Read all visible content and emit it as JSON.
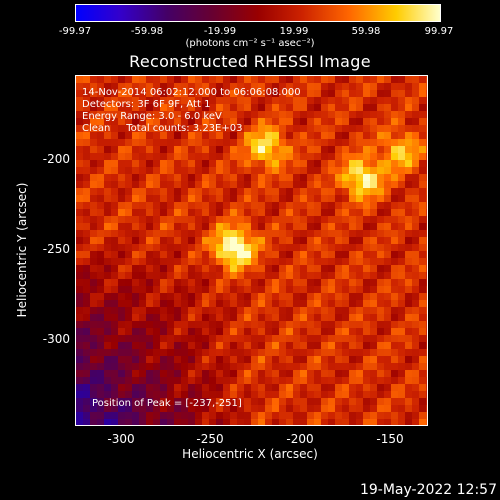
{
  "colorbar": {
    "ticks": [
      "-99.97",
      "-59.98",
      "-19.99",
      "19.99",
      "59.98",
      "99.97"
    ],
    "units": "(photons cm⁻² s⁻¹ asec⁻²)"
  },
  "plot": {
    "title": "Reconstructed RHESSI Image",
    "info": {
      "time": "14-Nov-2014 06:02:12.000 to 06:06:08.000",
      "detectors": "Detectors: 3F 6F 9F, Att 1",
      "energy": "Energy Range: 3.0 - 6.0 keV",
      "clean": "Clean     Total counts: 3.23E+03"
    },
    "peak": "Position of Peak = [-237,-251]",
    "xlabel": "Heliocentric X (arcsec)",
    "ylabel": "Heliocentric Y (arcsec)",
    "xticks": [
      "-300",
      "-250",
      "-200",
      "-150"
    ],
    "yticks": [
      "-200",
      "-250",
      "-300"
    ]
  },
  "footer": {
    "timestamp": "19-May-2022 12:57"
  },
  "chart_data": {
    "type": "heatmap",
    "title": "Reconstructed RHESSI Image",
    "xlabel": "Heliocentric X (arcsec)",
    "ylabel": "Heliocentric Y (arcsec)",
    "xlim": [
      -325,
      -130
    ],
    "ylim": [
      -350,
      -155
    ],
    "colorbar_range": [
      -99.97,
      99.97
    ],
    "sources": [
      {
        "x": -237,
        "y": -251,
        "intensity": 99.97
      },
      {
        "x": -166,
        "y": -212,
        "intensity": 80
      },
      {
        "x": -219,
        "y": -195,
        "intensity": 70
      },
      {
        "x": -145,
        "y": -197,
        "intensity": 55
      }
    ]
  }
}
